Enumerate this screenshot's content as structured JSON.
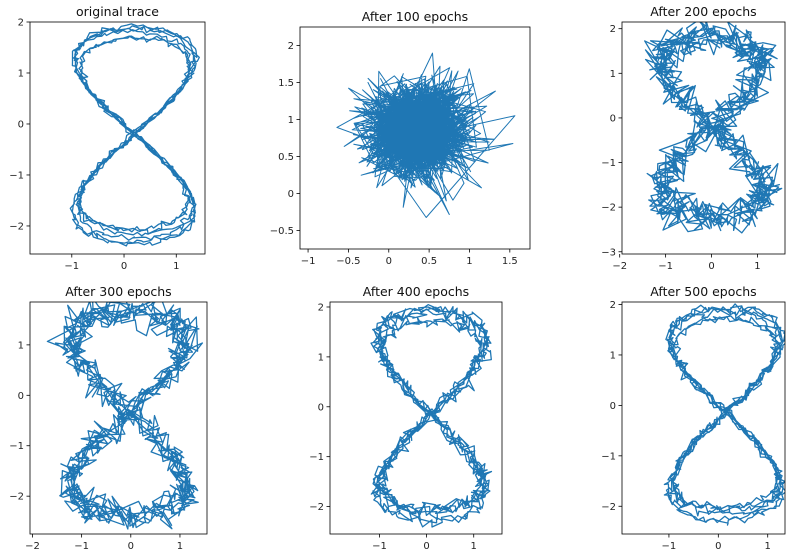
{
  "figure": {
    "line_color": "#1f77b4",
    "axes_color": "#000000"
  },
  "chart_data": [
    {
      "type": "line",
      "title": "original trace",
      "xlim": [
        -1.8,
        1.55
      ],
      "ylim": [
        -2.55,
        2.0
      ],
      "xticks": [
        -1,
        0,
        1
      ],
      "yticks": [
        -2,
        -1,
        0,
        1,
        2
      ],
      "shape": "figure8",
      "loops": 6,
      "noise": 0.03,
      "scale": [
        1.0,
        1.0
      ],
      "offset": [
        -0.15,
        -0.35
      ]
    },
    {
      "type": "line",
      "title": "After 100 epochs",
      "xlim": [
        -1.1,
        1.75
      ],
      "ylim": [
        -0.75,
        2.25
      ],
      "xticks": [
        -1.0,
        -0.5,
        0.0,
        0.5,
        1.0,
        1.5
      ],
      "yticks": [
        -0.5,
        0.0,
        0.5,
        1.0,
        1.5,
        2.0
      ],
      "shape": "noise",
      "center": [
        0.35,
        0.85
      ],
      "spread": [
        0.32,
        0.32
      ],
      "points": 1400
    },
    {
      "type": "line",
      "title": "After 200 epochs",
      "xlim": [
        -1.95,
        1.6
      ],
      "ylim": [
        -3.05,
        2.15
      ],
      "xticks": [
        -2,
        -1,
        0,
        1
      ],
      "yticks": [
        -3,
        -2,
        -1,
        0,
        1,
        2
      ],
      "shape": "figure8",
      "loops": 6,
      "noise": 0.16,
      "scale": [
        1.0,
        1.0
      ],
      "offset": [
        -0.35,
        -0.35
      ]
    },
    {
      "type": "line",
      "title": "After 300 epochs",
      "xlim": [
        -2.05,
        1.55
      ],
      "ylim": [
        -2.75,
        1.85
      ],
      "xticks": [
        -2,
        -1,
        0,
        1
      ],
      "yticks": [
        -2,
        -1,
        0,
        1
      ],
      "shape": "figure8",
      "loops": 6,
      "noise": 0.13,
      "scale": [
        1.05,
        1.0
      ],
      "offset": [
        -0.4,
        -0.5
      ]
    },
    {
      "type": "line",
      "title": "After 400 epochs",
      "xlim": [
        -2.05,
        1.6
      ],
      "ylim": [
        -2.55,
        2.1
      ],
      "xticks": [
        -1,
        0,
        1
      ],
      "yticks": [
        -2,
        -1,
        0,
        1,
        2
      ],
      "shape": "figure8",
      "loops": 6,
      "noise": 0.07,
      "scale": [
        1.0,
        1.0
      ],
      "offset": [
        -0.25,
        -0.3
      ]
    },
    {
      "type": "line",
      "title": "After 500 epochs",
      "xlim": [
        -1.95,
        1.35
      ],
      "ylim": [
        -2.55,
        2.05
      ],
      "xticks": [
        -1,
        0,
        1
      ],
      "yticks": [
        -2,
        -1,
        0,
        1,
        2
      ],
      "shape": "figure8",
      "loops": 6,
      "noise": 0.045,
      "scale": [
        1.0,
        1.0
      ],
      "offset": [
        -0.2,
        -0.3
      ]
    }
  ]
}
